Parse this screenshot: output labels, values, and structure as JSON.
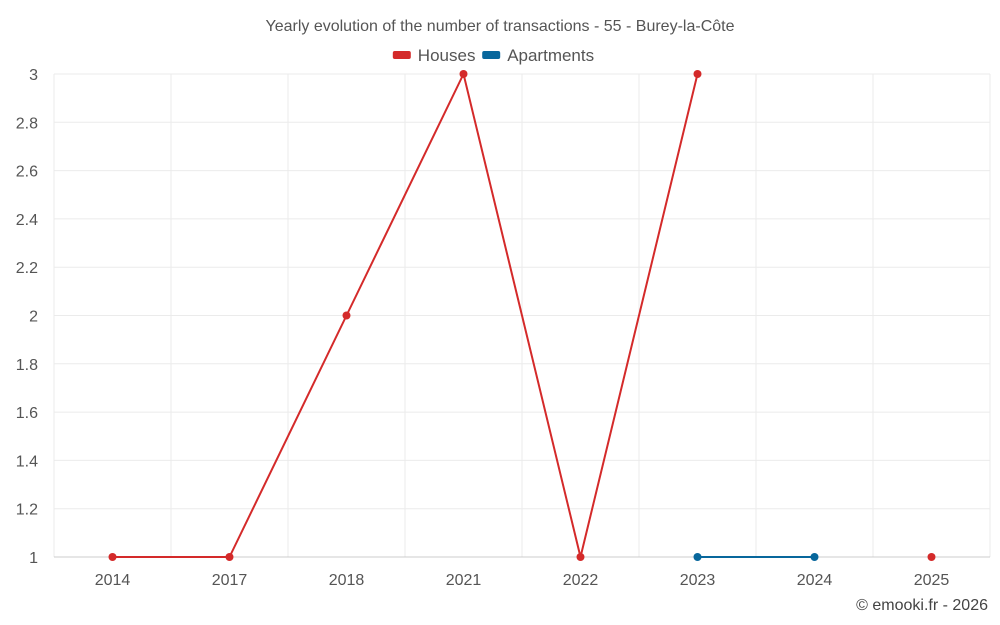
{
  "chart_data": {
    "type": "line",
    "title": "Yearly evolution of the number of transactions - 55 - Burey-la-Côte",
    "categories": [
      "2014",
      "2017",
      "2018",
      "2021",
      "2022",
      "2023",
      "2024",
      "2025"
    ],
    "series": [
      {
        "name": "Houses",
        "color": "#d42a2a",
        "values": [
          1,
          1,
          2,
          3,
          1,
          3,
          null,
          1
        ]
      },
      {
        "name": "Apartments",
        "color": "#08679c",
        "values": [
          null,
          null,
          null,
          null,
          null,
          1,
          1,
          null
        ]
      }
    ],
    "ylim": [
      1,
      3
    ],
    "yticks": [
      "1",
      "1.2",
      "1.4",
      "1.6",
      "1.8",
      "2",
      "2.2",
      "2.4",
      "2.6",
      "2.8",
      "3"
    ],
    "xlabel": "",
    "ylabel": "",
    "grid": true,
    "legend_position": "top-center"
  },
  "credit": "© emooki.fr - 2026"
}
